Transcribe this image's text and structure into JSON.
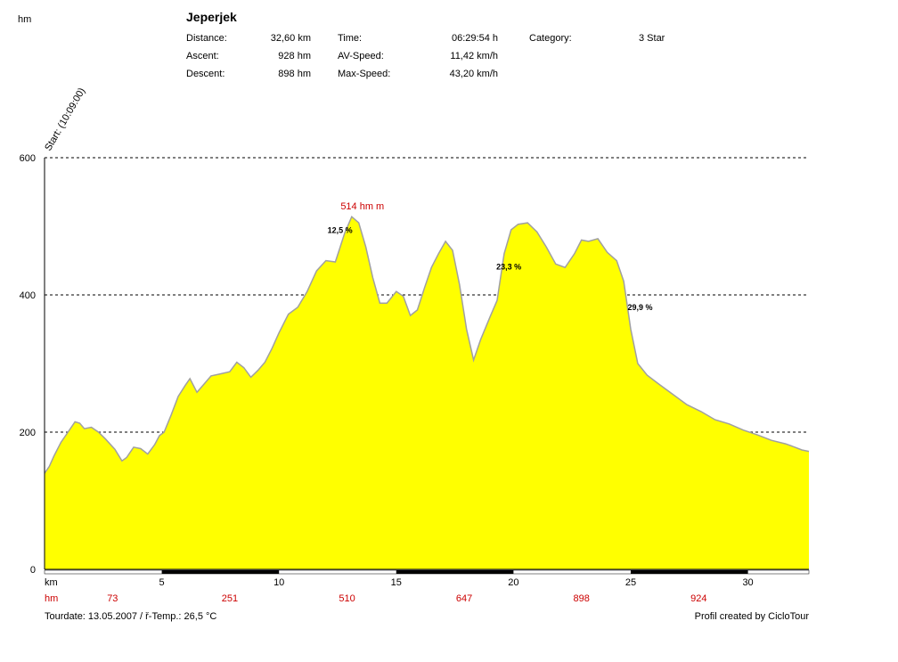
{
  "header": {
    "unit_label": "hm",
    "title": "Jeperjek",
    "rows": [
      {
        "label": "Distance:",
        "value": "32,60 km",
        "label2": "Time:",
        "value2": "06:29:54 h",
        "label3": "Category:",
        "value3": "3 Star"
      },
      {
        "label": "Ascent:",
        "value": "928 hm",
        "label2": "AV-Speed:",
        "value2": "11,42 km/h"
      },
      {
        "label": "Descent:",
        "value": "898 hm",
        "label2": "Max-Speed:",
        "value2": "43,20 km/h"
      }
    ]
  },
  "footer": {
    "tourdate": "Tourdate: 13.05.2007  /  ř-Temp.: 26,5 °C",
    "credit": "Profil created by CicloTour"
  },
  "chart_data": {
    "type": "area",
    "start_label": "Start: (10:09:00)",
    "xlabel": "km",
    "xlim": [
      0,
      32.6
    ],
    "ylim": [
      0,
      600
    ],
    "y_ticks": [
      0,
      200,
      400,
      600
    ],
    "x_ticks": [
      5,
      10,
      15,
      20,
      25,
      30
    ],
    "grid": "horizontal dashed at 200, 400, 600",
    "fill_color": "#ffff00",
    "line_color": "#a0a0a0",
    "accent_color": "#cc0000",
    "max_label": {
      "text": "514 hm m",
      "x": 13.1,
      "y": 514
    },
    "gradient_labels": [
      {
        "text": "12,5 %",
        "x": 12.6,
        "y": 490
      },
      {
        "text": "23,3 %",
        "x": 19.8,
        "y": 437
      },
      {
        "text": "29,9 %",
        "x": 25.4,
        "y": 378
      }
    ],
    "hm_row_label": "hm",
    "hm_row": [
      {
        "x": 2.9,
        "label": "73"
      },
      {
        "x": 7.9,
        "label": "251"
      },
      {
        "x": 12.9,
        "label": "510"
      },
      {
        "x": 17.9,
        "label": "647"
      },
      {
        "x": 22.9,
        "label": "898"
      },
      {
        "x": 27.9,
        "label": "924"
      }
    ],
    "x": [
      0,
      0.2,
      0.4,
      0.7,
      1.0,
      1.3,
      1.5,
      1.7,
      2.0,
      2.3,
      2.6,
      3.0,
      3.3,
      3.5,
      3.8,
      4.1,
      4.4,
      4.7,
      4.9,
      5.1,
      5.4,
      5.7,
      6.0,
      6.2,
      6.5,
      6.8,
      7.1,
      7.5,
      7.9,
      8.2,
      8.5,
      8.8,
      9.1,
      9.4,
      9.7,
      10.0,
      10.4,
      10.8,
      11.2,
      11.6,
      12.0,
      12.4,
      12.8,
      13.1,
      13.4,
      13.7,
      14.0,
      14.3,
      14.6,
      15.0,
      15.3,
      15.6,
      15.9,
      16.2,
      16.5,
      16.8,
      17.1,
      17.4,
      17.7,
      18.0,
      18.3,
      18.6,
      19.0,
      19.3,
      19.6,
      19.9,
      20.2,
      20.6,
      21.0,
      21.4,
      21.8,
      22.2,
      22.6,
      22.9,
      23.2,
      23.6,
      24.0,
      24.4,
      24.7,
      25.0,
      25.3,
      25.7,
      26.2,
      26.8,
      27.4,
      28.0,
      28.6,
      29.2,
      29.8,
      30.4,
      31.0,
      31.6,
      32.0,
      32.3,
      32.6
    ],
    "y": [
      140,
      150,
      165,
      185,
      200,
      215,
      213,
      205,
      207,
      200,
      190,
      175,
      158,
      163,
      178,
      176,
      168,
      182,
      195,
      200,
      225,
      252,
      268,
      278,
      258,
      270,
      282,
      285,
      288,
      302,
      294,
      280,
      290,
      302,
      322,
      345,
      372,
      382,
      405,
      435,
      450,
      448,
      490,
      514,
      505,
      470,
      425,
      388,
      388,
      405,
      398,
      370,
      378,
      410,
      440,
      460,
      478,
      465,
      415,
      350,
      305,
      335,
      368,
      392,
      460,
      495,
      503,
      505,
      492,
      470,
      445,
      440,
      460,
      480,
      478,
      482,
      462,
      450,
      420,
      350,
      300,
      283,
      270,
      255,
      240,
      230,
      218,
      212,
      203,
      196,
      188,
      183,
      178,
      174,
      172
    ]
  }
}
